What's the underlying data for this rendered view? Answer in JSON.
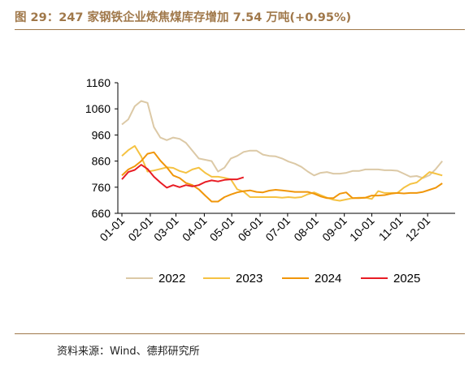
{
  "title": "图 29：247 家钢铁企业炼焦煤库存增加 7.54 万吨(+0.95%)",
  "source": "资料来源：Wind、德邦研究所",
  "chart_data": {
    "type": "line",
    "title": "",
    "xlabel": "",
    "ylabel": "",
    "ylim": [
      660,
      1160
    ],
    "yticks": [
      660,
      760,
      860,
      960,
      1060,
      1160
    ],
    "x_ticks": [
      "01-01",
      "02-01",
      "03-01",
      "04-01",
      "05-01",
      "06-01",
      "07-01",
      "08-01",
      "09-01",
      "10-01",
      "11-01",
      "12-01"
    ],
    "x_unit": "week",
    "grid": false,
    "legend": "bottom",
    "series": [
      {
        "name": "2022",
        "color": "#dcc9a6",
        "values": [
          1000,
          1020,
          1070,
          1090,
          1083,
          990,
          950,
          940,
          950,
          945,
          930,
          900,
          870,
          865,
          860,
          820,
          835,
          870,
          880,
          895,
          900,
          900,
          885,
          880,
          878,
          870,
          858,
          850,
          838,
          820,
          805,
          815,
          818,
          812,
          812,
          815,
          822,
          822,
          828,
          828,
          828,
          825,
          825,
          823,
          812,
          800,
          803,
          795,
          806,
          830,
          860
        ]
      },
      {
        "name": "2023",
        "color": "#f5c242",
        "values": [
          880,
          902,
          918,
          878,
          820,
          824,
          830,
          836,
          834,
          822,
          815,
          828,
          835,
          815,
          800,
          800,
          796,
          790,
          752,
          743,
          722,
          722,
          722,
          722,
          722,
          720,
          722,
          720,
          722,
          733,
          740,
          730,
          720,
          712,
          708,
          713,
          718,
          720,
          720,
          715,
          745,
          738,
          738,
          738,
          758,
          772,
          778,
          798,
          818,
          812,
          805
        ]
      },
      {
        "name": "2024",
        "color": "#f0960a",
        "values": [
          805,
          828,
          840,
          860,
          888,
          894,
          862,
          836,
          805,
          795,
          776,
          768,
          752,
          728,
          705,
          705,
          722,
          732,
          740,
          745,
          748,
          742,
          740,
          747,
          750,
          748,
          745,
          742,
          742,
          742,
          735,
          725,
          718,
          718,
          735,
          740,
          718,
          718,
          720,
          728,
          728,
          730,
          735,
          738,
          736,
          738,
          738,
          742,
          750,
          758,
          775
        ]
      },
      {
        "name": "2025",
        "color": "#e81c24",
        "values": [
          790,
          818,
          826,
          846,
          830,
          800,
          778,
          758,
          768,
          760,
          768,
          763,
          768,
          780,
          786,
          782,
          788,
          790,
          790,
          798
        ]
      }
    ]
  }
}
